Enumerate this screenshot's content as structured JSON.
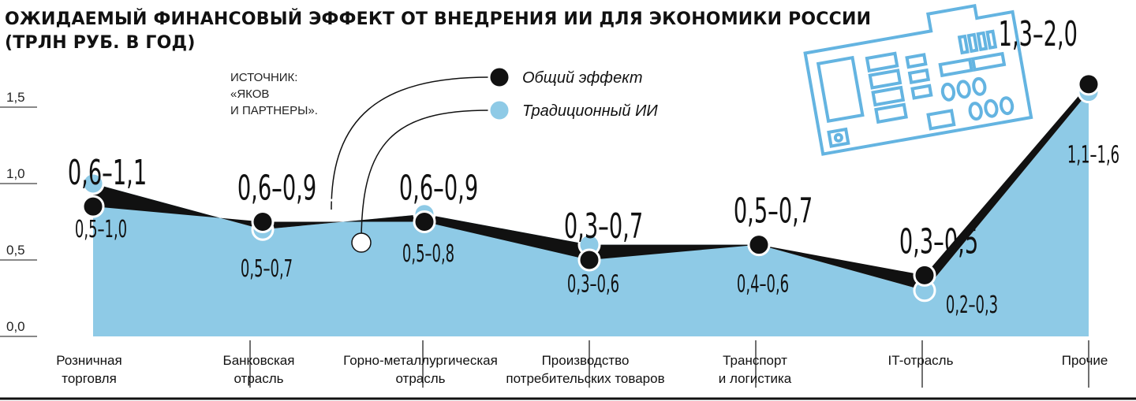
{
  "title_lines": [
    "ОЖИДАЕМЫЙ ФИНАНСОВЫЙ ЭФФЕКТ ОТ ВНЕДРЕНИЯ ИИ ДЛЯ ЭКОНОМИКИ РОССИИ",
    "(ТРЛН РУБ. В ГОД)"
  ],
  "source_lines": [
    "ИСТОЧНИК:",
    "«ЯКОВ",
    "И ПАРТНЕРЫ»."
  ],
  "legend": [
    {
      "name": "Общий эффект",
      "color": "#111111"
    },
    {
      "name": "Традиционный ИИ",
      "color": "#8ecae6"
    }
  ],
  "chart_data": {
    "type": "area",
    "ylim": [
      0,
      1.5
    ],
    "yticks": [
      "1,5",
      "1,0",
      "0,5",
      "0,0"
    ],
    "ytick_values": [
      1.5,
      1.0,
      0.5,
      0.0
    ],
    "grid": false,
    "legend_position": "top-center",
    "categories": [
      [
        "Розничная",
        "торговля"
      ],
      [
        "Банковская",
        "отрасль"
      ],
      [
        "Горно-металлургическая",
        "отрасль"
      ],
      [
        "Производство",
        "потребительских товаров"
      ],
      [
        "Транспорт",
        "и логистика"
      ],
      [
        "IT-отрасль"
      ],
      [
        "Прочие"
      ]
    ],
    "series": [
      {
        "name": "Общий эффект",
        "color": "#111111",
        "low": [
          0.6,
          0.6,
          0.6,
          0.3,
          0.5,
          0.3,
          1.3
        ],
        "high": [
          1.1,
          0.9,
          0.9,
          0.7,
          0.7,
          0.5,
          2.0
        ],
        "labels": [
          "0,6–1,1",
          "0,6–0,9",
          "0,6–0,9",
          "0,3–0,7",
          "0,5–0,7",
          "0,3–0,5",
          "1,3–2,0"
        ]
      },
      {
        "name": "Традиционный ИИ",
        "color": "#8ecae6",
        "low": [
          0.5,
          0.5,
          0.5,
          0.3,
          0.4,
          0.2,
          1.1
        ],
        "high": [
          1.0,
          0.7,
          0.8,
          0.6,
          0.6,
          0.3,
          1.6
        ],
        "labels": [
          "0,5–1,0",
          "0,5–0,7",
          "0,5–0,8",
          "0,3–0,6",
          "0,4–0,6",
          "0,2–0,3",
          "1,1–1,6"
        ]
      }
    ]
  }
}
